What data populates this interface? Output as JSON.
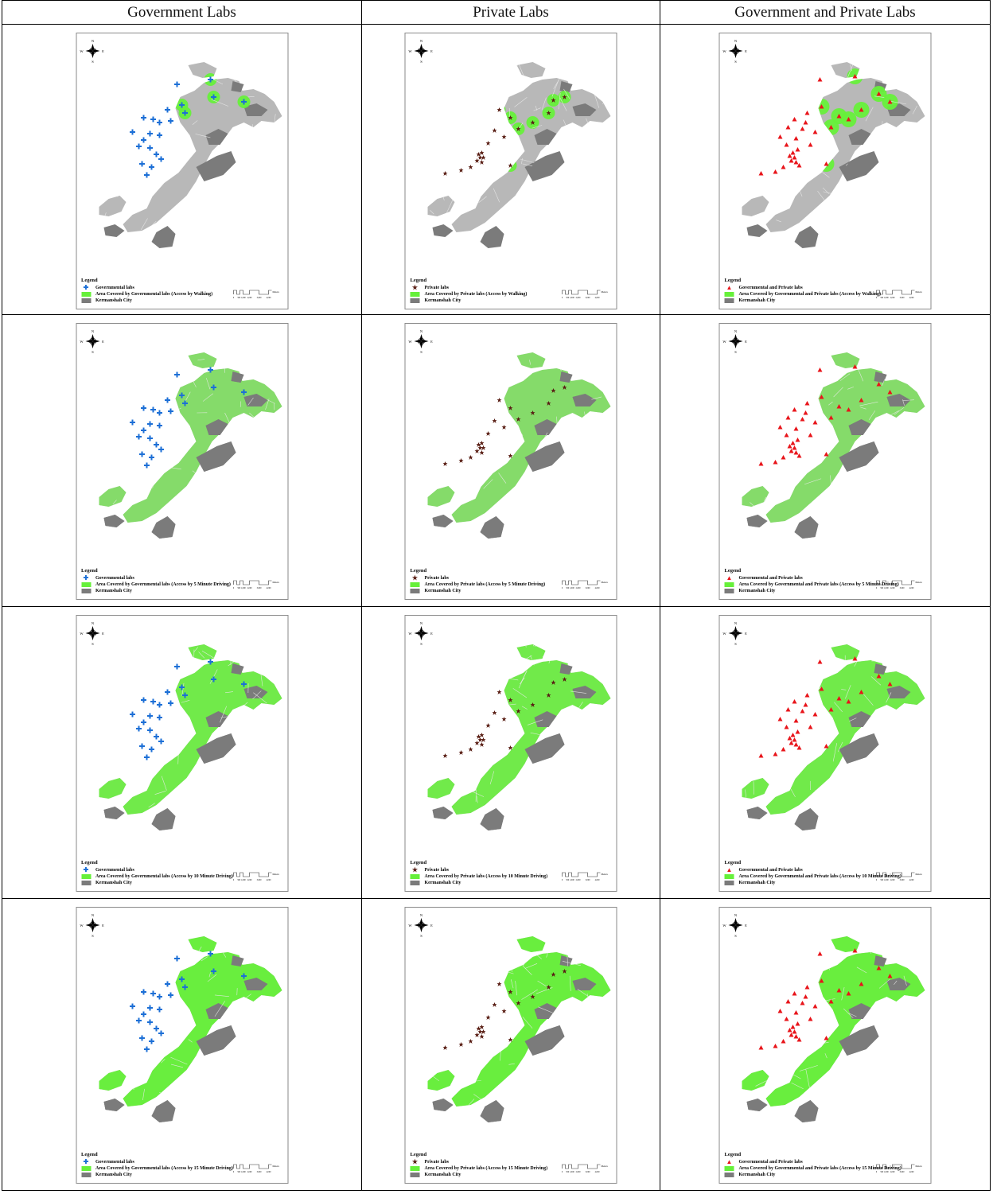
{
  "headers": [
    "Government Labs",
    "Private Labs",
    "Government and Private Labs"
  ],
  "colors": {
    "coverage": "#66f03a",
    "city": "#7b7b7b",
    "streets": "#e9e9e9",
    "gov_marker": "#1c6fd6",
    "private_marker": "#5a1f15",
    "combined_marker": "#e8141a"
  },
  "compass": {
    "n": "N",
    "s": "S",
    "e": "E",
    "w": "W"
  },
  "legend": {
    "title": "Legend",
    "markers": [
      "Governmental labs",
      "Private labs",
      "Governmental and Private labs"
    ],
    "city": "Kermanshah City"
  },
  "scalebar": {
    "unit": "Meters",
    "ticks": [
      "0",
      "500 1,000",
      "2,000",
      "3,000",
      "4,000"
    ]
  },
  "rows": [
    {
      "level": 0.18,
      "coverage_labels": [
        "Area Covered by Governmental labs (Access by Walking)",
        "Area Covered by Private labs (Access by Walking)",
        "Area Covered by Governmental and Private labs (Access by Walking)"
      ]
    },
    {
      "level": 0.62,
      "coverage_labels": [
        "Area Covered by Governmental labs (Access by 5 Minute Driving)",
        "Area Covered by Private labs (Access by 5 Minute Driving)",
        "Area Covered by Governmental and Private labs (Access by 5 Minute Driving)"
      ]
    },
    {
      "level": 0.88,
      "coverage_labels": [
        "Area Covered by Governmental labs (Access by 10 Minute Driving)",
        "Area Covered by Private labs (Access by 10 Minute Driving)",
        "Area Covered by Governmental and Private labs (Access by 10 Minute Driving)"
      ]
    },
    {
      "level": 0.97,
      "coverage_labels": [
        "Area Covered by Governmental labs (Access by 15 Minute Driving)",
        "Area Covered by Private labs (Access by 15 Minute Driving)",
        "Area Covered by Governmental and Private labs (Access by 15 Minute Driving)"
      ]
    }
  ]
}
